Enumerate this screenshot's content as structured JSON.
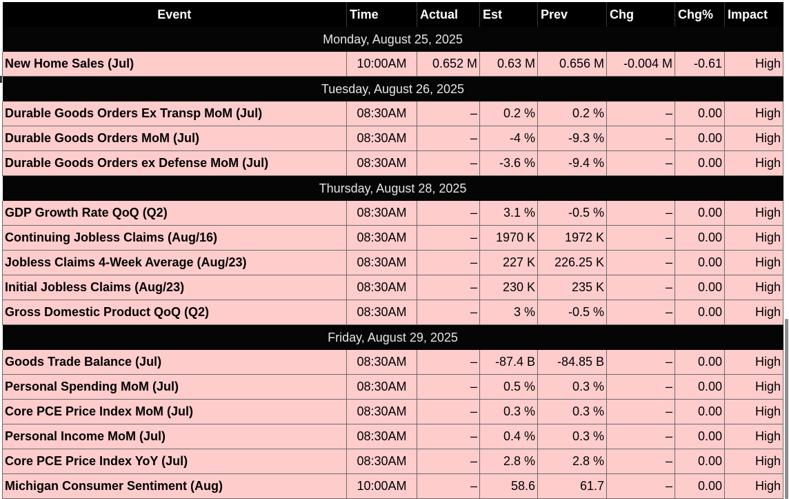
{
  "columns": {
    "event": "Event",
    "time": "Time",
    "actual": "Actual",
    "est": "Est",
    "prev": "Prev",
    "chg": "Chg",
    "chg_pct": "Chg%",
    "impact": "Impact"
  },
  "days": [
    {
      "label": "Monday, August 25, 2025",
      "events": [
        {
          "event": "New Home Sales (Jul)",
          "time": "10:00AM",
          "actual": "0.652 M",
          "est": "0.63 M",
          "prev": "0.656 M",
          "chg": "-0.004 M",
          "chg_pct": "-0.61",
          "impact": "High"
        }
      ]
    },
    {
      "label": "Tuesday, August 26, 2025",
      "events": [
        {
          "event": "Durable Goods Orders Ex Transp MoM (Jul)",
          "time": "08:30AM",
          "actual": "–",
          "est": "0.2 %",
          "prev": "0.2 %",
          "chg": "–",
          "chg_pct": "0.00",
          "impact": "High"
        },
        {
          "event": "Durable Goods Orders MoM (Jul)",
          "time": "08:30AM",
          "actual": "–",
          "est": "-4 %",
          "prev": "-9.3 %",
          "chg": "–",
          "chg_pct": "0.00",
          "impact": "High"
        },
        {
          "event": "Durable Goods Orders ex Defense MoM (Jul)",
          "time": "08:30AM",
          "actual": "–",
          "est": "-3.6 %",
          "prev": "-9.4 %",
          "chg": "–",
          "chg_pct": "0.00",
          "impact": "High"
        }
      ]
    },
    {
      "label": "Thursday, August 28, 2025",
      "events": [
        {
          "event": "GDP Growth Rate QoQ (Q2)",
          "time": "08:30AM",
          "actual": "–",
          "est": "3.1 %",
          "prev": "-0.5 %",
          "chg": "–",
          "chg_pct": "0.00",
          "impact": "High"
        },
        {
          "event": "Continuing Jobless Claims (Aug/16)",
          "time": "08:30AM",
          "actual": "–",
          "est": "1970 K",
          "prev": "1972 K",
          "chg": "–",
          "chg_pct": "0.00",
          "impact": "High"
        },
        {
          "event": "Jobless Claims 4-Week Average (Aug/23)",
          "time": "08:30AM",
          "actual": "–",
          "est": "227 K",
          "prev": "226.25 K",
          "chg": "–",
          "chg_pct": "0.00",
          "impact": "High"
        },
        {
          "event": "Initial Jobless Claims (Aug/23)",
          "time": "08:30AM",
          "actual": "–",
          "est": "230 K",
          "prev": "235 K",
          "chg": "–",
          "chg_pct": "0.00",
          "impact": "High"
        },
        {
          "event": "Gross Domestic Product QoQ (Q2)",
          "time": "08:30AM",
          "actual": "–",
          "est": "3 %",
          "prev": "-0.5 %",
          "chg": "–",
          "chg_pct": "0.00",
          "impact": "High"
        }
      ]
    },
    {
      "label": "Friday, August 29, 2025",
      "events": [
        {
          "event": "Goods Trade Balance (Jul)",
          "time": "08:30AM",
          "actual": "–",
          "est": "-87.4 B",
          "prev": "-84.85 B",
          "chg": "–",
          "chg_pct": "0.00",
          "impact": "High"
        },
        {
          "event": "Personal Spending MoM (Jul)",
          "time": "08:30AM",
          "actual": "–",
          "est": "0.5 %",
          "prev": "0.3 %",
          "chg": "–",
          "chg_pct": "0.00",
          "impact": "High"
        },
        {
          "event": "Core PCE Price Index MoM (Jul)",
          "time": "08:30AM",
          "actual": "–",
          "est": "0.3 %",
          "prev": "0.3 %",
          "chg": "–",
          "chg_pct": "0.00",
          "impact": "High"
        },
        {
          "event": "Personal Income MoM (Jul)",
          "time": "08:30AM",
          "actual": "–",
          "est": "0.4 %",
          "prev": "0.3 %",
          "chg": "–",
          "chg_pct": "0.00",
          "impact": "High"
        },
        {
          "event": "Core PCE Price Index YoY (Jul)",
          "time": "08:30AM",
          "actual": "–",
          "est": "2.8 %",
          "prev": "2.8 %",
          "chg": "–",
          "chg_pct": "0.00",
          "impact": "High"
        },
        {
          "event": "Michigan Consumer Sentiment (Aug)",
          "time": "10:00AM",
          "actual": "–",
          "est": "58.6",
          "prev": "61.7",
          "chg": "–",
          "chg_pct": "0.00",
          "impact": "High"
        }
      ]
    }
  ],
  "colors": {
    "header_bg": "#000000",
    "header_text": "#ffffff",
    "day_bg": "#050505",
    "day_text": "#e6e6e6",
    "row_bg": "#ffcccc",
    "grid": "#6a6a6a",
    "scrollbar_thumb": "#8c8c8c"
  }
}
